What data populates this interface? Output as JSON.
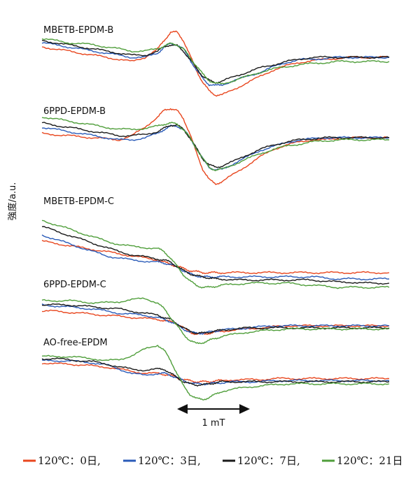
{
  "chart_data": {
    "type": "line",
    "title": "",
    "xlabel": "",
    "ylabel": "強度/a.u.",
    "grid": false,
    "legend_position": "bottom",
    "scale_bar": {
      "label": "1 mT"
    },
    "series_meta": [
      {
        "name": "120℃：0日,",
        "color": "#e8461e"
      },
      {
        "name": "120℃：3日,",
        "color": "#2a5bb8"
      },
      {
        "name": "120℃：7日,",
        "color": "#1a1a1a"
      },
      {
        "name": "120℃：21日",
        "color": "#4f9e3a"
      }
    ],
    "x": [
      -1.0,
      -0.9,
      -0.8,
      -0.7,
      -0.6,
      -0.5,
      -0.4,
      -0.3,
      -0.2,
      -0.1,
      -0.05,
      0.0,
      0.05,
      0.1,
      0.15,
      0.2,
      0.25,
      0.3,
      0.35,
      0.4,
      0.5,
      0.6,
      0.7,
      0.8,
      0.9,
      1.0,
      1.1,
      1.2,
      1.3,
      1.4,
      1.5,
      1.6,
      1.7
    ],
    "panels": [
      {
        "label": "MBETB-EPDM-B",
        "series": [
          {
            "name": "120℃：0日,",
            "values": [
              6.0,
              5.0,
              4.0,
              3.0,
              2.0,
              1.0,
              0.0,
              -1.0,
              1.0,
              5.0,
              9.0,
              13.0,
              13.0,
              9.0,
              2.0,
              -5.0,
              -11.0,
              -15.0,
              -17.0,
              -17.0,
              -14.0,
              -11.0,
              -8.0,
              -5.0,
              -3.0,
              -1.5,
              -0.5,
              0.0,
              0.5,
              1.0,
              1.0,
              1.0,
              1.0
            ]
          },
          {
            "name": "120℃：3日,",
            "values": [
              8.0,
              7.0,
              6.0,
              5.0,
              4.0,
              3.0,
              2.0,
              1.0,
              1.0,
              3.0,
              6.0,
              7.5,
              7.0,
              5.0,
              0.0,
              -5.0,
              -9.0,
              -12.0,
              -12.5,
              -12.0,
              -10.0,
              -8.0,
              -6.0,
              -3.5,
              -1.5,
              0.0,
              0.0,
              0.5,
              1.0,
              1.0,
              1.0,
              1.0,
              1.0
            ]
          },
          {
            "name": "120℃：7日,",
            "values": [
              9.0,
              8.0,
              7.0,
              6.0,
              5.0,
              4.0,
              3.0,
              2.0,
              2.0,
              4.0,
              6.0,
              7.0,
              6.5,
              4.0,
              0.0,
              -4.0,
              -8.0,
              -10.0,
              -11.0,
              -10.5,
              -8.0,
              -6.0,
              -4.0,
              -2.5,
              -1.0,
              0.0,
              1.0,
              1.0,
              1.0,
              1.0,
              1.0,
              1.0,
              1.0
            ]
          },
          {
            "name": "120℃：21日",
            "values": [
              10.0,
              9.0,
              8.0,
              7.5,
              7.0,
              6.0,
              5.0,
              4.0,
              4.0,
              5.0,
              6.5,
              7.5,
              7.0,
              5.0,
              1.0,
              -3.0,
              -7.0,
              -10.0,
              -11.5,
              -11.5,
              -10.0,
              -8.0,
              -6.0,
              -4.5,
              -3.5,
              -2.5,
              -2.0,
              -1.5,
              -1.0,
              -1.0,
              -1.0,
              -1.0,
              -1.0
            ]
          }
        ]
      },
      {
        "label": "6PPD-EPDM-B",
        "series": [
          {
            "name": "120℃：0日,",
            "values": [
              3.0,
              2.5,
              2.0,
              1.5,
              1.0,
              0.5,
              0.0,
              2.0,
              6.0,
              11.0,
              14.0,
              15.0,
              14.0,
              10.0,
              3.0,
              -6.0,
              -14.0,
              -19.0,
              -21.0,
              -20.0,
              -16.0,
              -12.0,
              -8.0,
              -4.5,
              -2.5,
              -1.0,
              0.0,
              0.0,
              0.5,
              1.0,
              1.0,
              1.0,
              1.0
            ]
          },
          {
            "name": "120℃：3日,",
            "values": [
              6.0,
              5.0,
              4.0,
              3.0,
              2.0,
              1.0,
              0.0,
              0.0,
              1.0,
              3.0,
              5.0,
              6.5,
              6.5,
              5.0,
              1.0,
              -4.0,
              -9.0,
              -13.0,
              -14.5,
              -14.0,
              -11.0,
              -8.0,
              -5.0,
              -3.0,
              -1.5,
              0.0,
              0.5,
              1.0,
              1.0,
              1.0,
              1.0,
              1.0,
              1.0
            ]
          },
          {
            "name": "120℃：7日,",
            "values": [
              8.0,
              7.0,
              6.0,
              5.0,
              4.0,
              3.0,
              2.0,
              2.0,
              2.5,
              4.0,
              5.5,
              7.0,
              7.0,
              5.0,
              1.0,
              -4.0,
              -9.0,
              -12.0,
              -13.0,
              -12.5,
              -10.0,
              -7.0,
              -4.5,
              -2.5,
              -1.0,
              0.0,
              0.5,
              1.0,
              1.0,
              1.0,
              1.0,
              1.0,
              1.0
            ]
          },
          {
            "name": "120℃：21日",
            "values": [
              11.0,
              10.0,
              9.0,
              8.0,
              7.0,
              6.0,
              5.0,
              5.0,
              5.5,
              6.5,
              7.5,
              8.0,
              7.5,
              5.0,
              1.0,
              -4.0,
              -9.0,
              -13.0,
              -14.5,
              -14.0,
              -11.5,
              -9.0,
              -6.5,
              -4.5,
              -3.0,
              -2.0,
              -1.0,
              -0.5,
              0.0,
              0.0,
              0.0,
              0.0,
              0.0
            ]
          }
        ]
      },
      {
        "label": "MBETB-EPDM-C",
        "series": [
          {
            "name": "120℃：0日,",
            "values": [
              0.0,
              -1.0,
              -2.0,
              -3.0,
              -4.0,
              -5.0,
              -6.0,
              -7.0,
              -8.0,
              -9.0,
              -10.0,
              -11.0,
              -12.0,
              -13.0,
              -14.0,
              -14.5,
              -15.0,
              -15.0,
              -15.0,
              -15.0,
              -15.0,
              -15.0,
              -15.0,
              -15.0,
              -15.0,
              -15.0,
              -15.0,
              -15.0,
              -15.0,
              -15.0,
              -15.0,
              -15.0,
              -15.0
            ]
          },
          {
            "name": "120℃：3日,",
            "values": [
              3.0,
              1.0,
              -1.0,
              -3.0,
              -5.0,
              -7.0,
              -8.0,
              -9.0,
              -9.5,
              -10.0,
              -10.5,
              -11.0,
              -12.5,
              -14.0,
              -15.5,
              -16.5,
              -17.0,
              -17.0,
              -17.0,
              -17.0,
              -17.0,
              -17.0,
              -17.0,
              -17.0,
              -17.0,
              -17.0,
              -17.0,
              -17.5,
              -18.0,
              -18.0,
              -18.0,
              -18.0,
              -18.0
            ]
          },
          {
            "name": "120℃：7日,",
            "values": [
              7.0,
              5.0,
              3.0,
              1.0,
              -1.0,
              -3.0,
              -5.0,
              -6.5,
              -7.5,
              -8.5,
              -9.0,
              -10.0,
              -12.0,
              -14.0,
              -15.5,
              -16.5,
              -17.0,
              -17.5,
              -18.0,
              -18.0,
              -18.5,
              -18.5,
              -18.5,
              -18.5,
              -18.5,
              -18.5,
              -18.5,
              -19.0,
              -19.5,
              -19.5,
              -20.0,
              -20.0,
              -20.0
            ]
          },
          {
            "name": "120℃：21日",
            "values": [
              10.0,
              8.0,
              6.0,
              4.0,
              2.0,
              0.0,
              -1.5,
              -2.5,
              -3.0,
              -3.5,
              -5.0,
              -8.0,
              -12.0,
              -16.0,
              -19.0,
              -21.0,
              -22.0,
              -22.0,
              -21.5,
              -21.0,
              -20.5,
              -20.0,
              -20.0,
              -20.0,
              -20.0,
              -20.5,
              -21.0,
              -21.5,
              -22.0,
              -22.0,
              -22.0,
              -22.0,
              -22.0
            ]
          }
        ]
      },
      {
        "label": "6PPD-EPDM-C",
        "series": [
          {
            "name": "120℃：0日,",
            "values": [
              0.0,
              0.0,
              -0.5,
              -1.0,
              -1.5,
              -2.0,
              -2.5,
              -3.0,
              -3.5,
              -4.0,
              -4.5,
              -5.0,
              -6.0,
              -8.0,
              -10.0,
              -11.0,
              -11.0,
              -10.5,
              -10.0,
              -9.5,
              -9.0,
              -8.5,
              -8.0,
              -7.5,
              -7.0,
              -7.0,
              -7.0,
              -7.0,
              -7.0,
              -7.0,
              -7.0,
              -7.0,
              -7.0
            ]
          },
          {
            "name": "120℃：3日,",
            "values": [
              3.0,
              2.5,
              2.0,
              1.5,
              1.0,
              0.0,
              -1.0,
              -1.5,
              -2.0,
              -3.0,
              -4.0,
              -5.0,
              -6.5,
              -8.5,
              -10.0,
              -10.5,
              -10.5,
              -10.0,
              -9.5,
              -9.0,
              -8.5,
              -8.0,
              -7.5,
              -7.0,
              -7.0,
              -7.0,
              -7.0,
              -7.0,
              -7.0,
              -7.0,
              -7.0,
              -7.0,
              -7.0
            ]
          },
          {
            "name": "120℃：7日,",
            "values": [
              3.0,
              3.0,
              3.0,
              2.5,
              2.0,
              1.5,
              1.0,
              0.0,
              -1.0,
              -2.0,
              -3.0,
              -4.0,
              -6.0,
              -8.0,
              -9.5,
              -10.5,
              -10.5,
              -10.0,
              -9.5,
              -9.0,
              -8.5,
              -8.0,
              -8.0,
              -8.0,
              -8.0,
              -8.0,
              -8.0,
              -8.0,
              -8.0,
              -8.0,
              -8.0,
              -8.0,
              -8.0
            ]
          },
          {
            "name": "120℃：21日",
            "values": [
              5.0,
              5.0,
              5.0,
              4.5,
              4.0,
              4.0,
              4.5,
              5.5,
              6.0,
              4.0,
              1.0,
              -3.0,
              -7.0,
              -11.0,
              -14.0,
              -15.5,
              -15.0,
              -14.0,
              -13.0,
              -12.0,
              -11.0,
              -10.0,
              -9.5,
              -9.0,
              -8.5,
              -8.5,
              -8.5,
              -8.5,
              -8.5,
              -8.5,
              -8.5,
              -8.5,
              -8.5
            ]
          }
        ]
      },
      {
        "label": "AO-free-EPDM",
        "series": [
          {
            "name": "120℃：0日,",
            "values": [
              2.0,
              1.5,
              1.5,
              1.0,
              0.5,
              0.0,
              -1.0,
              -2.0,
              -3.0,
              -3.0,
              -3.5,
              -4.0,
              -5.0,
              -6.0,
              -6.5,
              -7.0,
              -7.0,
              -7.0,
              -6.5,
              -6.5,
              -6.0,
              -6.0,
              -6.0,
              -5.5,
              -5.5,
              -5.5,
              -5.5,
              -5.5,
              -5.5,
              -5.5,
              -5.5,
              -5.5,
              -5.5
            ]
          },
          {
            "name": "120℃：3日,",
            "values": [
              3.0,
              3.0,
              3.0,
              2.5,
              2.0,
              1.0,
              -1.0,
              -3.0,
              -4.0,
              -3.0,
              -3.0,
              -4.0,
              -5.0,
              -6.5,
              -7.5,
              -8.0,
              -8.0,
              -8.0,
              -7.5,
              -7.5,
              -7.0,
              -7.0,
              -7.0,
              -6.5,
              -6.5,
              -6.5,
              -6.5,
              -6.5,
              -6.5,
              -6.5,
              -6.5,
              -6.5,
              -6.5
            ]
          },
          {
            "name": "120℃：7日,",
            "values": [
              4.0,
              4.0,
              3.5,
              3.0,
              2.5,
              1.5,
              0.0,
              -1.0,
              -1.5,
              -1.0,
              -1.0,
              -3.0,
              -5.0,
              -7.0,
              -8.0,
              -8.5,
              -8.5,
              -8.0,
              -7.5,
              -7.0,
              -7.0,
              -7.0,
              -7.0,
              -7.0,
              -7.0,
              -7.0,
              -7.0,
              -7.0,
              -7.0,
              -7.0,
              -7.0,
              -7.0,
              -7.0
            ]
          },
          {
            "name": "120℃：21日",
            "values": [
              5.0,
              5.0,
              5.0,
              4.5,
              4.0,
              3.0,
              3.5,
              5.5,
              8.5,
              10.5,
              8.0,
              3.0,
              -3.0,
              -9.0,
              -13.0,
              -15.0,
              -15.5,
              -14.5,
              -13.0,
              -11.5,
              -10.5,
              -9.5,
              -9.0,
              -8.5,
              -8.0,
              -8.0,
              -8.0,
              -8.0,
              -8.0,
              -8.0,
              -8.0,
              -8.0,
              -8.0
            ]
          }
        ]
      }
    ]
  }
}
